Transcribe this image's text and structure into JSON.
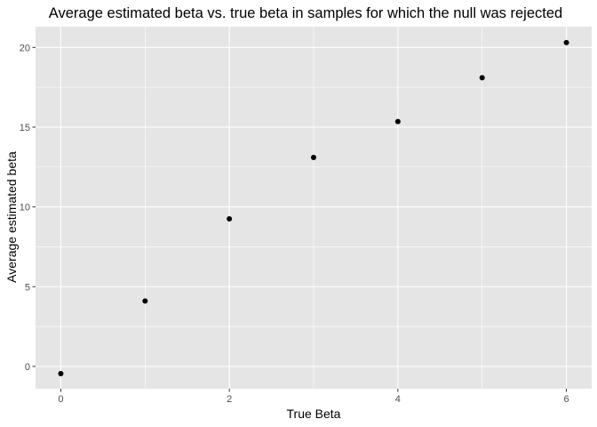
{
  "chart_data": {
    "type": "scatter",
    "title": "Average estimated beta vs. true beta in samples for which the null was rejected",
    "xlabel": "True Beta",
    "ylabel": "Average estimated beta",
    "x": [
      0,
      1,
      2,
      3,
      4,
      5,
      6
    ],
    "y": [
      -0.45,
      4.1,
      9.25,
      13.1,
      15.35,
      18.1,
      20.3
    ],
    "xlim": [
      -0.3,
      6.3
    ],
    "ylim": [
      -1.4,
      21.3
    ],
    "x_ticks": [
      0,
      2,
      4,
      6
    ],
    "x_tick_labels": [
      "0",
      "2",
      "4",
      "6"
    ],
    "y_ticks": [
      0,
      5,
      10,
      15,
      20
    ],
    "y_tick_labels": [
      "0",
      "5",
      "10",
      "15",
      "20"
    ],
    "grid": true,
    "legend": "none"
  },
  "colors": {
    "panel_background": "#e5e5e5",
    "gridline": "#ffffff",
    "point": "#000000",
    "tick_text": "#4d4d4d"
  }
}
